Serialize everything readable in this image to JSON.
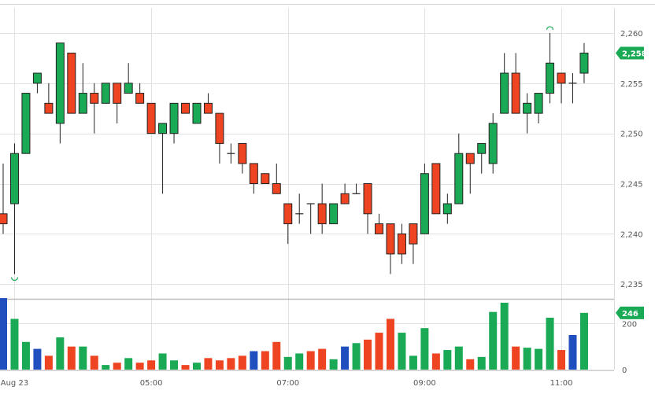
{
  "chart_data": {
    "type": "candlestick",
    "colors": {
      "up": "#1aaa55",
      "down": "#ee4422",
      "volume_highlight": "#1f4fbf",
      "grid": "#e2e2e2",
      "badge": "#1aaa55"
    },
    "price_axis": {
      "range": [
        2234,
        2262.5
      ],
      "ticks": [
        "2,235",
        "2,240",
        "2,245",
        "2,250",
        "2,255",
        "2,260"
      ],
      "tick_values": [
        2235,
        2240,
        2245,
        2250,
        2255,
        2260
      ]
    },
    "volume_axis": {
      "range": [
        0,
        300
      ],
      "ticks": [
        "0",
        "200"
      ],
      "tick_values": [
        0,
        200
      ]
    },
    "time_axis": {
      "labels": [
        "Aug 23",
        "05:00",
        "07:00",
        "09:00",
        "11:00"
      ],
      "label_index": [
        1,
        13,
        25,
        37,
        49
      ]
    },
    "last_price": {
      "value": 2258,
      "label": "2,258"
    },
    "last_volume": {
      "value": 246,
      "label": "246"
    },
    "candles": [
      {
        "o": 2242,
        "h": 2247,
        "l": 2240,
        "c": 2241,
        "v": 310,
        "vc": "highlight"
      },
      {
        "o": 2243,
        "h": 2249,
        "l": 2236,
        "c": 2248,
        "v": 220,
        "vc": "up"
      },
      {
        "o": 2248,
        "h": 2254,
        "l": 2248,
        "c": 2254,
        "v": 120,
        "vc": "up"
      },
      {
        "o": 2255,
        "h": 2256,
        "l": 2254,
        "c": 2256,
        "v": 90,
        "vc": "highlight"
      },
      {
        "o": 2253,
        "h": 2255,
        "l": 2252,
        "c": 2252,
        "v": 60,
        "vc": "down"
      },
      {
        "o": 2251,
        "h": 2259,
        "l": 2249,
        "c": 2259,
        "v": 140,
        "vc": "up"
      },
      {
        "o": 2258,
        "h": 2258,
        "l": 2252,
        "c": 2252,
        "v": 100,
        "vc": "down"
      },
      {
        "o": 2252,
        "h": 2257,
        "l": 2252,
        "c": 2254,
        "v": 100,
        "vc": "up"
      },
      {
        "o": 2254,
        "h": 2255,
        "l": 2250,
        "c": 2253,
        "v": 60,
        "vc": "down"
      },
      {
        "o": 2253,
        "h": 2255,
        "l": 2253,
        "c": 2255,
        "v": 20,
        "vc": "up"
      },
      {
        "o": 2255,
        "h": 2255,
        "l": 2251,
        "c": 2253,
        "v": 30,
        "vc": "down"
      },
      {
        "o": 2254,
        "h": 2257,
        "l": 2254,
        "c": 2255,
        "v": 50,
        "vc": "up"
      },
      {
        "o": 2254,
        "h": 2255,
        "l": 2253,
        "c": 2253,
        "v": 30,
        "vc": "down"
      },
      {
        "o": 2253,
        "h": 2253,
        "l": 2250,
        "c": 2250,
        "v": 40,
        "vc": "down"
      },
      {
        "o": 2250,
        "h": 2251,
        "l": 2244,
        "c": 2251,
        "v": 70,
        "vc": "up"
      },
      {
        "o": 2250,
        "h": 2253,
        "l": 2249,
        "c": 2253,
        "v": 40,
        "vc": "up"
      },
      {
        "o": 2253,
        "h": 2253,
        "l": 2252,
        "c": 2252,
        "v": 20,
        "vc": "down"
      },
      {
        "o": 2251,
        "h": 2253,
        "l": 2251,
        "c": 2253,
        "v": 30,
        "vc": "up"
      },
      {
        "o": 2253,
        "h": 2254,
        "l": 2252,
        "c": 2252,
        "v": 50,
        "vc": "down"
      },
      {
        "o": 2252,
        "h": 2252,
        "l": 2247,
        "c": 2249,
        "v": 40,
        "vc": "down"
      },
      {
        "o": 2248,
        "h": 2249,
        "l": 2247,
        "c": 2248,
        "v": 50,
        "vc": "down"
      },
      {
        "o": 2249,
        "h": 2249,
        "l": 2246,
        "c": 2247,
        "v": 60,
        "vc": "down"
      },
      {
        "o": 2247,
        "h": 2247,
        "l": 2244,
        "c": 2245,
        "v": 80,
        "vc": "highlight"
      },
      {
        "o": 2246,
        "h": 2246,
        "l": 2245,
        "c": 2245,
        "v": 80,
        "vc": "down"
      },
      {
        "o": 2245,
        "h": 2247,
        "l": 2244,
        "c": 2244,
        "v": 120,
        "vc": "down"
      },
      {
        "o": 2243,
        "h": 2243,
        "l": 2239,
        "c": 2241,
        "v": 55,
        "vc": "up"
      },
      {
        "o": 2242,
        "h": 2244,
        "l": 2241,
        "c": 2242,
        "v": 70,
        "vc": "up"
      },
      {
        "o": 2243,
        "h": 2243,
        "l": 2240,
        "c": 2243,
        "v": 80,
        "vc": "down"
      },
      {
        "o": 2243,
        "h": 2245,
        "l": 2240,
        "c": 2241,
        "v": 90,
        "vc": "down"
      },
      {
        "o": 2241,
        "h": 2243,
        "l": 2241,
        "c": 2243,
        "v": 45,
        "vc": "up"
      },
      {
        "o": 2244,
        "h": 2245,
        "l": 2243,
        "c": 2243,
        "v": 100,
        "vc": "highlight"
      },
      {
        "o": 2244,
        "h": 2245,
        "l": 2244,
        "c": 2244,
        "v": 115,
        "vc": "up"
      },
      {
        "o": 2245,
        "h": 2245,
        "l": 2240,
        "c": 2242,
        "v": 130,
        "vc": "down"
      },
      {
        "o": 2241,
        "h": 2242,
        "l": 2240,
        "c": 2240,
        "v": 160,
        "vc": "down"
      },
      {
        "o": 2241,
        "h": 2241,
        "l": 2236,
        "c": 2238,
        "v": 220,
        "vc": "down"
      },
      {
        "o": 2240,
        "h": 2241,
        "l": 2237,
        "c": 2238,
        "v": 160,
        "vc": "up"
      },
      {
        "o": 2241,
        "h": 2241,
        "l": 2237,
        "c": 2239,
        "v": 60,
        "vc": "up"
      },
      {
        "o": 2240,
        "h": 2247,
        "l": 2240,
        "c": 2246,
        "v": 180,
        "vc": "up"
      },
      {
        "o": 2247,
        "h": 2247,
        "l": 2242,
        "c": 2242,
        "v": 70,
        "vc": "down"
      },
      {
        "o": 2242,
        "h": 2244,
        "l": 2241,
        "c": 2243,
        "v": 85,
        "vc": "up"
      },
      {
        "o": 2243,
        "h": 2250,
        "l": 2243,
        "c": 2248,
        "v": 100,
        "vc": "up"
      },
      {
        "o": 2248,
        "h": 2248,
        "l": 2244,
        "c": 2247,
        "v": 45,
        "vc": "down"
      },
      {
        "o": 2248,
        "h": 2249,
        "l": 2246,
        "c": 2249,
        "v": 55,
        "vc": "up"
      },
      {
        "o": 2247,
        "h": 2252,
        "l": 2246,
        "c": 2251,
        "v": 250,
        "vc": "up"
      },
      {
        "o": 2252,
        "h": 2258,
        "l": 2252,
        "c": 2256,
        "v": 290,
        "vc": "up"
      },
      {
        "o": 2256,
        "h": 2258,
        "l": 2252,
        "c": 2252,
        "v": 100,
        "vc": "down"
      },
      {
        "o": 2252,
        "h": 2254,
        "l": 2250,
        "c": 2253,
        "v": 95,
        "vc": "up"
      },
      {
        "o": 2252,
        "h": 2254,
        "l": 2251,
        "c": 2254,
        "v": 90,
        "vc": "up"
      },
      {
        "o": 2254,
        "h": 2260,
        "l": 2253,
        "c": 2257,
        "v": 225,
        "vc": "up"
      },
      {
        "o": 2256,
        "h": 2256,
        "l": 2253,
        "c": 2255,
        "v": 85,
        "vc": "down"
      },
      {
        "o": 2255,
        "h": 2256,
        "l": 2253,
        "c": 2255,
        "v": 150,
        "vc": "highlight"
      },
      {
        "o": 2256,
        "h": 2259,
        "l": 2255,
        "c": 2258,
        "v": 246,
        "vc": "up"
      }
    ],
    "markers": [
      {
        "kind": "low",
        "index": 1
      },
      {
        "kind": "high",
        "index": 48
      }
    ]
  }
}
